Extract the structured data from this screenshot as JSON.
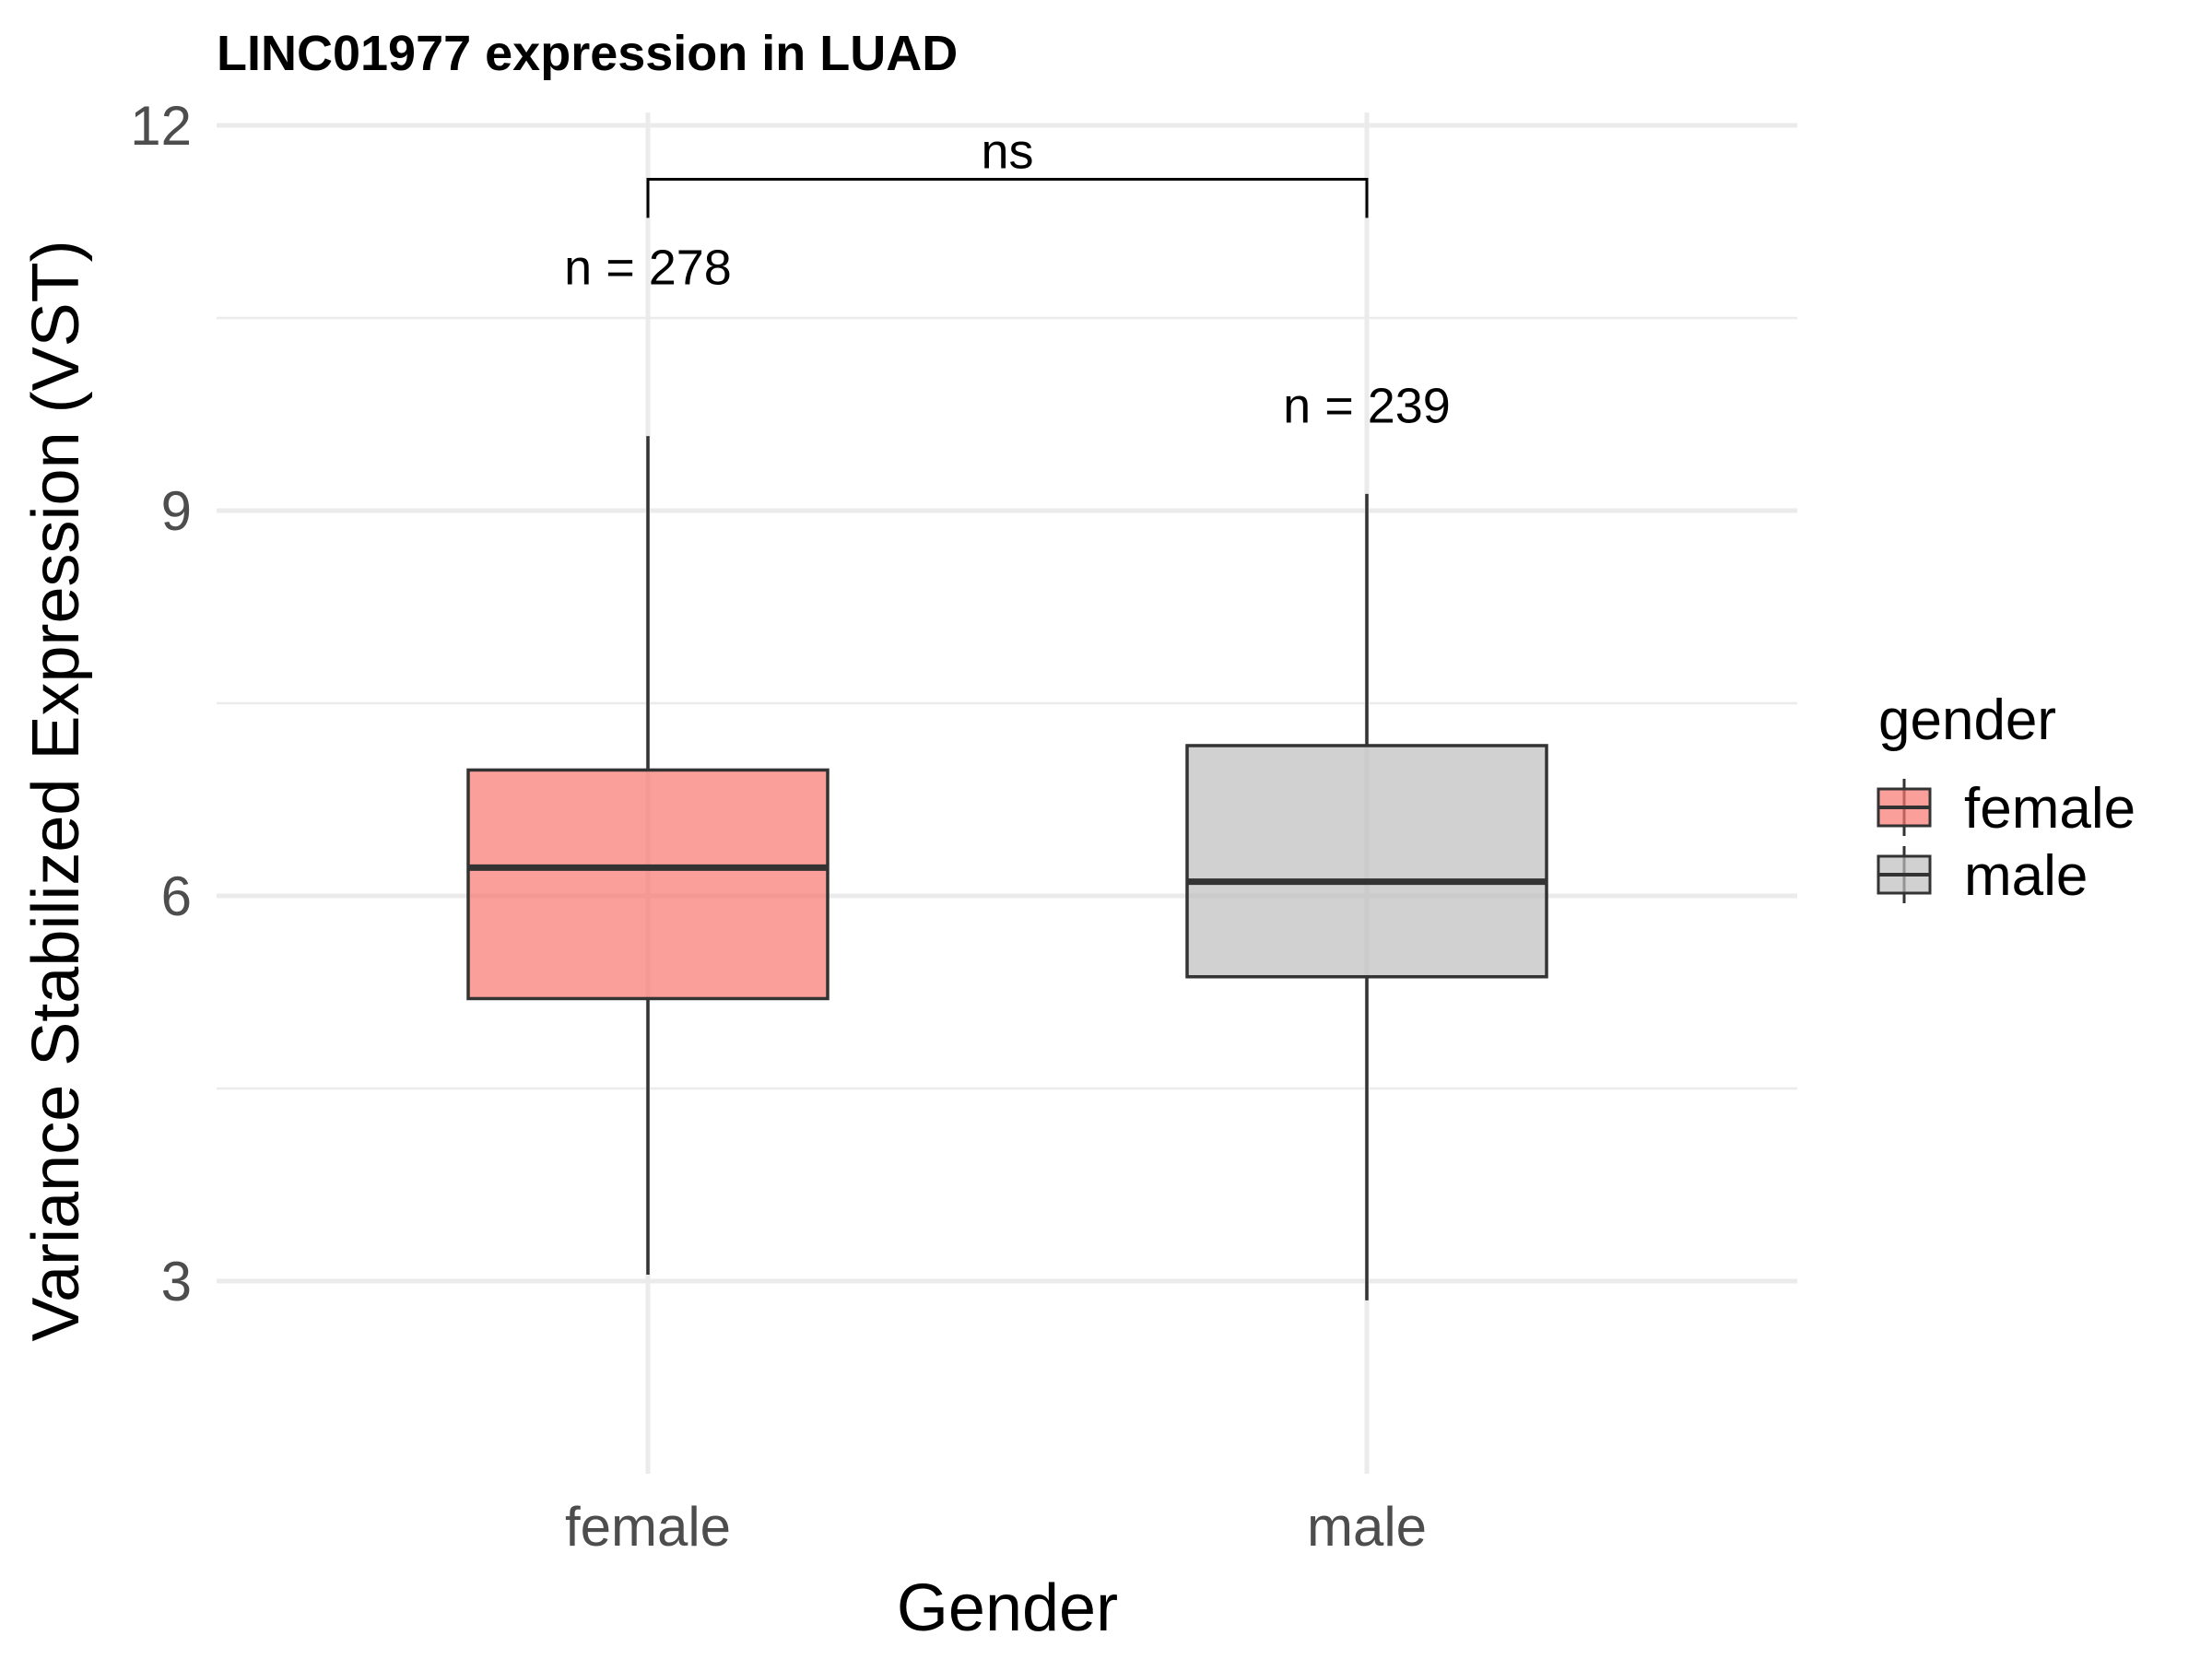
{
  "chart_data": {
    "type": "box",
    "title": "LINC01977 expression in LUAD",
    "xlabel": "Gender",
    "ylabel": "Variance Stabilized Expression (VST)",
    "ylim": [
      1.5,
      12.1
    ],
    "yticks": [
      3,
      6,
      9,
      12
    ],
    "ytick_labels": [
      "3",
      "6",
      "9",
      "12"
    ],
    "grid": true,
    "categories": [
      "female",
      "male"
    ],
    "boxes": [
      {
        "category": "female",
        "min": 3.05,
        "q1": 5.2,
        "median": 6.22,
        "q3": 6.98,
        "max": 9.58,
        "n_label": "n = 278",
        "n_label_y": 10.9,
        "color": "#f8766d"
      },
      {
        "category": "male",
        "min": 2.85,
        "q1": 5.37,
        "median": 6.11,
        "q3": 7.17,
        "max": 9.13,
        "n_label": "n = 239",
        "n_label_y": 9.82,
        "color": "#bebebe"
      }
    ],
    "significance": {
      "label": "ns",
      "y": 11.58,
      "tip_y": 11.28
    },
    "legend": {
      "title": "gender",
      "position": "right",
      "items": [
        {
          "label": "female",
          "color": "#f8766d"
        },
        {
          "label": "male",
          "color": "#bebebe"
        }
      ]
    }
  }
}
